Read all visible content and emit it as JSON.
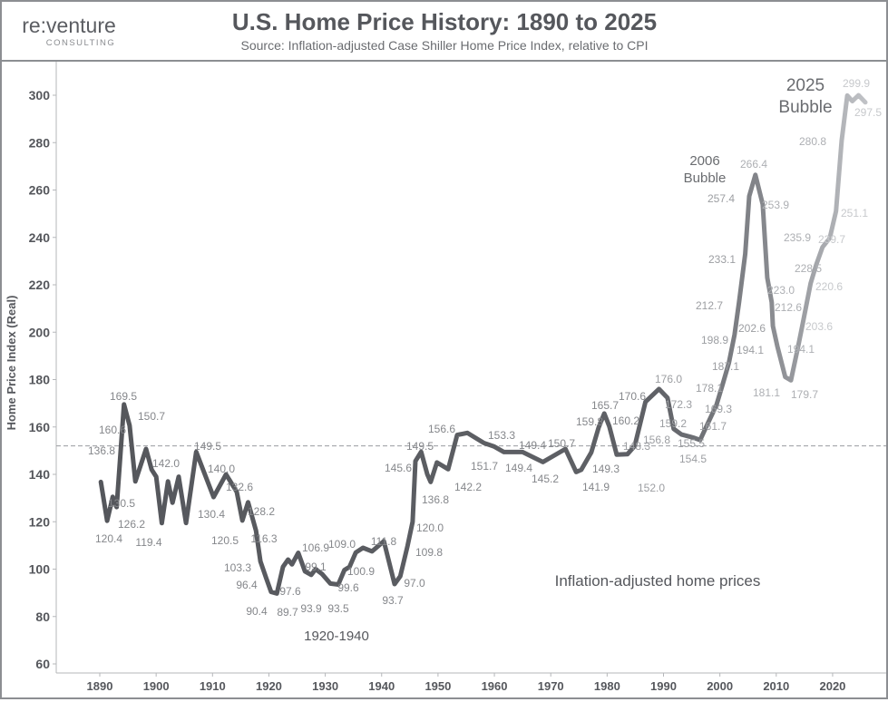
{
  "logo": {
    "main": "re:venture",
    "sub": "CONSULTING"
  },
  "chart_data": {
    "type": "line",
    "title": "U.S. Home Price History: 1890 to 2025",
    "subtitle": "Source: Inflation-adjusted Case Shiller Home Price Index, relative to CPI",
    "xlabel": "",
    "ylabel": "Home Price Index (Real)",
    "xlim": [
      1882.8,
      2029.2
    ],
    "ylim": [
      56,
      313
    ],
    "x_ticks": [
      "1890",
      "1900",
      "1910",
      "1920",
      "1930",
      "1940",
      "1950",
      "1960",
      "1970",
      "1980",
      "1990",
      "2000",
      "2010",
      "2020"
    ],
    "y_ticks": [
      "60",
      "80",
      "100",
      "120",
      "140",
      "160",
      "180",
      "200",
      "220",
      "240",
      "260",
      "280",
      "300"
    ],
    "grid": false,
    "reference_line": {
      "value": 152,
      "style": "dashed"
    },
    "series": [
      {
        "name": "Inflation-adjusted home prices",
        "points": [
          [
            1890.2,
            136.8
          ],
          [
            1891.3,
            120.4
          ],
          [
            1892.3,
            130.5
          ],
          [
            1893.0,
            126.2
          ],
          [
            1894.3,
            169.5
          ],
          [
            1895.3,
            160.6
          ],
          [
            1896.3,
            137.0
          ],
          [
            1898.2,
            150.7
          ],
          [
            1899.2,
            142.0
          ],
          [
            1900.0,
            139.0
          ],
          [
            1901.0,
            119.4
          ],
          [
            1902.1,
            137.0
          ],
          [
            1902.9,
            128.0
          ],
          [
            1904.0,
            139.0
          ],
          [
            1905.3,
            119.5
          ],
          [
            1907.1,
            149.5
          ],
          [
            1910.2,
            130.4
          ],
          [
            1912.4,
            140.0
          ],
          [
            1914.3,
            132.6
          ],
          [
            1915.3,
            120.5
          ],
          [
            1916.3,
            128.2
          ],
          [
            1917.7,
            116.3
          ],
          [
            1918.5,
            103.3
          ],
          [
            1919.5,
            96.4
          ],
          [
            1920.4,
            90.4
          ],
          [
            1921.4,
            89.7
          ],
          [
            1922.5,
            101.0
          ],
          [
            1923.4,
            104.0
          ],
          [
            1924.1,
            102.0
          ],
          [
            1925.2,
            106.9
          ],
          [
            1926.4,
            99.1
          ],
          [
            1927.5,
            97.6
          ],
          [
            1928.3,
            100.0
          ],
          [
            1929.4,
            98.0
          ],
          [
            1930.9,
            93.9
          ],
          [
            1932.3,
            93.5
          ],
          [
            1933.4,
            99.6
          ],
          [
            1934.3,
            100.9
          ],
          [
            1935.4,
            107.0
          ],
          [
            1936.7,
            109.0
          ],
          [
            1938.3,
            107.5
          ],
          [
            1940.4,
            111.8
          ],
          [
            1942.3,
            93.7
          ],
          [
            1943.3,
            97.0
          ],
          [
            1944.6,
            109.8
          ],
          [
            1945.5,
            120.0
          ],
          [
            1946.0,
            145.6
          ],
          [
            1947.0,
            149.5
          ],
          [
            1948.1,
            140.0
          ],
          [
            1948.7,
            136.8
          ],
          [
            1949.8,
            145.0
          ],
          [
            1951.8,
            142.2
          ],
          [
            1953.4,
            156.6
          ],
          [
            1955.2,
            157.5
          ],
          [
            1958.1,
            153.3
          ],
          [
            1960.0,
            151.7
          ],
          [
            1961.7,
            149.4
          ],
          [
            1965.0,
            149.4
          ],
          [
            1968.6,
            145.2
          ],
          [
            1972.6,
            150.7
          ],
          [
            1974.5,
            141.0
          ],
          [
            1975.4,
            141.9
          ],
          [
            1977.2,
            149.3
          ],
          [
            1978.5,
            159.8
          ],
          [
            1979.5,
            165.7
          ],
          [
            1980.4,
            160.2
          ],
          [
            1981.7,
            148.3
          ],
          [
            1983.6,
            148.5
          ],
          [
            1984.9,
            152.0
          ],
          [
            1986.8,
            170.6
          ],
          [
            1989.2,
            176.0
          ],
          [
            1990.7,
            172.3
          ],
          [
            1991.8,
            159.2
          ],
          [
            1993.2,
            156.8
          ],
          [
            1995.3,
            155.5
          ],
          [
            1996.5,
            154.5
          ],
          [
            1997.9,
            161.7
          ],
          [
            1999.4,
            169.3
          ],
          [
            2000.5,
            178.1
          ],
          [
            2001.6,
            187.1
          ],
          [
            2002.6,
            198.9
          ],
          [
            2003.4,
            212.7
          ],
          [
            2004.5,
            233.1
          ],
          [
            2005.2,
            257.4
          ],
          [
            2006.3,
            266.4
          ],
          [
            2007.6,
            253.9
          ],
          [
            2008.4,
            223.0
          ],
          [
            2009.2,
            212.6
          ],
          [
            2009.4,
            202.6
          ],
          [
            2010.2,
            194.1
          ],
          [
            2011.6,
            181.1
          ],
          [
            2012.6,
            179.7
          ],
          [
            2013.9,
            194.1
          ],
          [
            2014.7,
            203.6
          ],
          [
            2016.1,
            220.6
          ],
          [
            2017.1,
            228.5
          ],
          [
            2018.2,
            235.9
          ],
          [
            2019.5,
            239.7
          ],
          [
            2020.6,
            251.1
          ],
          [
            2021.6,
            280.8
          ],
          [
            2022.6,
            299.9
          ],
          [
            2023.5,
            297.5
          ],
          [
            2024.6,
            300.0
          ],
          [
            2025.8,
            297.0
          ]
        ]
      }
    ],
    "data_labels": [
      "136.8",
      "120.4",
      "169.5",
      "160.6",
      "130.5",
      "126.2",
      "150.7",
      "142.0",
      "119.4",
      "149.5",
      "130.4",
      "140.0",
      "132.6",
      "120.5",
      "128.2",
      "116.3",
      "103.3",
      "96.4",
      "90.4",
      "89.7",
      "106.9",
      "99.1",
      "97.6",
      "93.9",
      "93.5",
      "99.6",
      "100.9",
      "109.0",
      "111.8",
      "93.7",
      "97.0",
      "109.8",
      "120.0",
      "145.6",
      "149.5",
      "136.8",
      "142.2",
      "156.6",
      "153.3",
      "151.7",
      "149.4",
      "149.4",
      "150.7",
      "145.2",
      "141.9",
      "149.3",
      "159.8",
      "165.7",
      "160.2",
      "148.3",
      "152.0",
      "170.6",
      "176.0",
      "172.3",
      "159.2",
      "156.8",
      "155.5",
      "154.5",
      "161.7",
      "169.3",
      "178.1",
      "187.1",
      "198.9",
      "212.7",
      "233.1",
      "257.4",
      "266.4",
      "253.9",
      "223.0",
      "212.6",
      "202.6",
      "194.1",
      "181.1",
      "179.7",
      "194.1",
      "203.6",
      "220.6",
      "228.5",
      "235.9",
      "239.7",
      "251.1",
      "280.8",
      "299.9",
      "297.5"
    ],
    "annotations": {
      "bubble_2006": [
        "2006",
        "Bubble"
      ],
      "bubble_2025": [
        "2025",
        "Bubble"
      ],
      "era": "1920-1940",
      "series_label": "Inflation-adjusted home prices"
    }
  }
}
